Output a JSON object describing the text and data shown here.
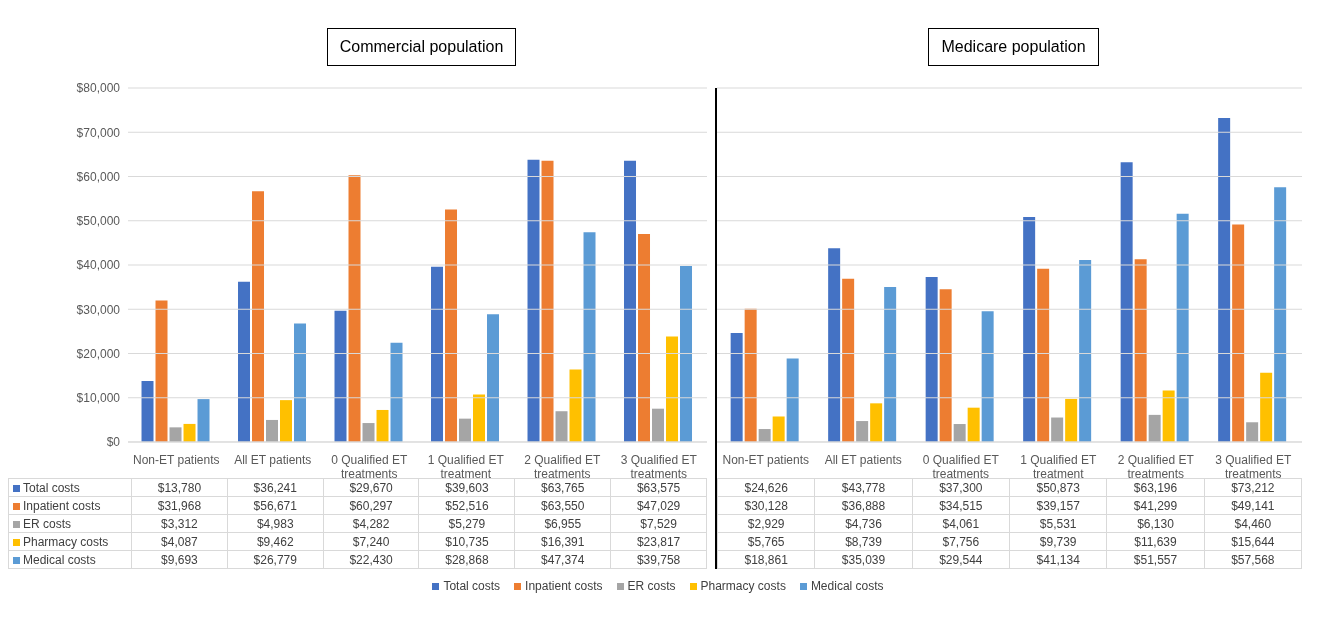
{
  "chart_data": [
    {
      "type": "bar",
      "title": "Commercial population",
      "categories": [
        "Non-ET patients",
        "All ET patients",
        "0 Qualified ET treatments",
        "1 Qualified ET treatment",
        "2 Qualified ET treatments",
        "3 Qualified ET treatments"
      ],
      "series": [
        {
          "name": "Total costs",
          "color": "#4472c4",
          "values": [
            13780,
            36241,
            29670,
            39603,
            63765,
            63575
          ],
          "value_labels": [
            "$13,780",
            "$36,241",
            "$29,670",
            "$39,603",
            "$63,765",
            "$63,575"
          ]
        },
        {
          "name": "Inpatient costs",
          "color": "#ed7d31",
          "values": [
            31968,
            56671,
            60297,
            52516,
            63550,
            47029
          ],
          "value_labels": [
            "$31,968",
            "$56,671",
            "$60,297",
            "$52,516",
            "$63,550",
            "$47,029"
          ]
        },
        {
          "name": "ER costs",
          "color": "#a5a5a5",
          "values": [
            3312,
            4983,
            4282,
            5279,
            6955,
            7529
          ],
          "value_labels": [
            "$3,312",
            "$4,983",
            "$4,282",
            "$5,279",
            "$6,955",
            "$7,529"
          ]
        },
        {
          "name": "Pharmacy costs",
          "color": "#ffc000",
          "values": [
            4087,
            9462,
            7240,
            10735,
            16391,
            23817
          ],
          "value_labels": [
            "$4,087",
            "$9,462",
            "$7,240",
            "$10,735",
            "$16,391",
            "$23,817"
          ]
        },
        {
          "name": "Medical costs",
          "color": "#5b9bd5",
          "values": [
            9693,
            26779,
            22430,
            28868,
            47374,
            39758
          ],
          "value_labels": [
            "$9,693",
            "$26,779",
            "$22,430",
            "$28,868",
            "$47,374",
            "$39,758"
          ]
        }
      ],
      "ylim": [
        0,
        80000
      ],
      "yticks": [
        {
          "value": 0,
          "label": "$0"
        },
        {
          "value": 10000,
          "label": "$10,000"
        },
        {
          "value": 20000,
          "label": "$20,000"
        },
        {
          "value": 30000,
          "label": "$30,000"
        },
        {
          "value": 40000,
          "label": "$40,000"
        },
        {
          "value": 50000,
          "label": "$50,000"
        },
        {
          "value": 60000,
          "label": "$60,000"
        },
        {
          "value": 70000,
          "label": "$70,000"
        },
        {
          "value": 80000,
          "label": "$80,000"
        }
      ],
      "grid": "y",
      "legend": "bottom left"
    },
    {
      "type": "bar",
      "title": "Medicare population",
      "categories": [
        "Non-ET patients",
        "All ET patients",
        "0 Qualified ET treatments",
        "1 Qualified ET treatment",
        "2 Qualified ET treatments",
        "3 Qualified ET treatments"
      ],
      "series": [
        {
          "name": "Total costs",
          "color": "#4472c4",
          "values": [
            24626,
            43778,
            37300,
            50873,
            63196,
            73212
          ],
          "value_labels": [
            "$24,626",
            "$43,778",
            "$37,300",
            "$50,873",
            "$63,196",
            "$73,212"
          ]
        },
        {
          "name": "Inpatient costs",
          "color": "#ed7d31",
          "values": [
            30128,
            36888,
            34515,
            39157,
            41299,
            49141
          ],
          "value_labels": [
            "$30,128",
            "$36,888",
            "$34,515",
            "$39,157",
            "$41,299",
            "$49,141"
          ]
        },
        {
          "name": "ER costs",
          "color": "#a5a5a5",
          "values": [
            2929,
            4736,
            4061,
            5531,
            6130,
            4460
          ],
          "value_labels": [
            "$2,929",
            "$4,736",
            "$4,061",
            "$5,531",
            "$6,130",
            "$4,460"
          ]
        },
        {
          "name": "Pharmacy costs",
          "color": "#ffc000",
          "values": [
            5765,
            8739,
            7756,
            9739,
            11639,
            15644
          ],
          "value_labels": [
            "$5,765",
            "$8,739",
            "$7,756",
            "$9,739",
            "$11,639",
            "$15,644"
          ]
        },
        {
          "name": "Medical costs",
          "color": "#5b9bd5",
          "values": [
            18861,
            35039,
            29544,
            41134,
            51557,
            57568
          ],
          "value_labels": [
            "$18,861",
            "$35,039",
            "$29,544",
            "$41,134",
            "$51,557",
            "$57,568"
          ]
        }
      ],
      "ylim": [
        0,
        80000
      ],
      "yticks": [
        0,
        10000,
        20000,
        30000,
        40000,
        50000,
        60000,
        70000,
        80000
      ],
      "grid": "y",
      "tick_labels": "x",
      "legend": "bottom"
    }
  ]
}
